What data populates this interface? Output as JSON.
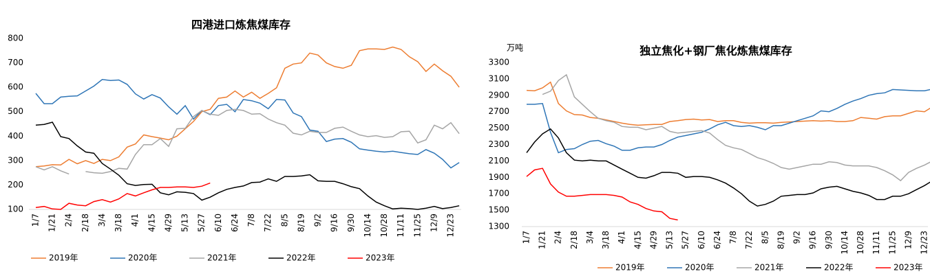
{
  "chart_data": [
    {
      "type": "line",
      "title": "四港进口炼焦煤库存",
      "categories": [
        "1/7",
        null,
        "1/21",
        null,
        "2/4",
        null,
        "2/18",
        null,
        "3/4",
        null,
        "3/18",
        null,
        "4/1",
        null,
        "4/15",
        null,
        "4/29",
        null,
        "5/13",
        null,
        "5/27",
        null,
        "6/10",
        null,
        "6/24",
        null,
        "7/8",
        null,
        "7/22",
        null,
        "8/5",
        null,
        "8/19",
        null,
        "9/2",
        null,
        "9/16",
        null,
        "9/30",
        null,
        "10/14",
        null,
        "10/28",
        null,
        "11/11",
        null,
        "11/25",
        null,
        "12/9",
        null,
        "12/23",
        null
      ],
      "ylim": [
        100,
        800
      ],
      "yticks": [
        100,
        200,
        300,
        400,
        500,
        600,
        700,
        800
      ],
      "legend": "bottom",
      "series": [
        {
          "name": "2019年",
          "color": "#ed7d31",
          "values": [
            275,
            278,
            283,
            282,
            305,
            287,
            300,
            288,
            305,
            300,
            315,
            355,
            368,
            405,
            398,
            392,
            385,
            400,
            430,
            460,
            500,
            510,
            555,
            560,
            585,
            560,
            580,
            555,
            575,
            598,
            678,
            695,
            700,
            740,
            732,
            700,
            685,
            678,
            690,
            750,
            757,
            757,
            755,
            765,
            755,
            725,
            705,
            665,
            695,
            668,
            645,
            600
          ]
        },
        {
          "name": "2020年",
          "color": "#2e75b6",
          "values": [
            575,
            533,
            533,
            560,
            563,
            565,
            585,
            605,
            632,
            628,
            630,
            612,
            573,
            552,
            570,
            556,
            520,
            490,
            525,
            470,
            505,
            488,
            525,
            530,
            500,
            550,
            545,
            535,
            512,
            550,
            548,
            495,
            480,
            425,
            420,
            378,
            388,
            390,
            375,
            348,
            343,
            338,
            335,
            338,
            333,
            328,
            325,
            345,
            330,
            305,
            270,
            292
          ]
        },
        {
          "name": "2021年",
          "color": "#a5a5a5",
          "values": [
            275,
            262,
            275,
            258,
            245,
            null,
            255,
            250,
            248,
            255,
            268,
            265,
            325,
            365,
            365,
            390,
            358,
            430,
            432,
            480,
            505,
            490,
            485,
            505,
            510,
            505,
            490,
            492,
            470,
            455,
            445,
            412,
            405,
            420,
            415,
            415,
            432,
            437,
            420,
            405,
            398,
            402,
            395,
            398,
            418,
            420,
            372,
            385,
            445,
            430,
            455,
            410
          ]
        },
        {
          "name": "2022年",
          "color": "#000000",
          "values": [
            445,
            448,
            457,
            398,
            390,
            360,
            335,
            330,
            288,
            265,
            240,
            205,
            198,
            202,
            203,
            168,
            160,
            172,
            170,
            165,
            138,
            150,
            168,
            182,
            190,
            196,
            210,
            212,
            225,
            215,
            235,
            235,
            237,
            242,
            217,
            215,
            215,
            205,
            193,
            185,
            155,
            130,
            115,
            102,
            105,
            103,
            100,
            105,
            112,
            103,
            108,
            115
          ]
        },
        {
          "name": "2023年",
          "color": "#ff0000",
          "values": [
            108,
            112,
            102,
            100,
            125,
            118,
            115,
            132,
            140,
            130,
            143,
            165,
            155,
            168,
            180,
            190,
            190,
            192,
            192,
            190,
            195,
            208,
            null,
            null,
            null,
            null,
            null,
            null,
            null,
            null,
            null,
            null,
            null,
            null,
            null,
            null,
            null,
            null,
            null,
            null,
            null,
            null,
            null,
            null,
            null,
            null,
            null,
            null,
            null,
            null,
            null,
            null
          ]
        }
      ]
    },
    {
      "type": "line",
      "title": "独立焦化+钢厂焦化炼焦煤库存",
      "y_label": "万吨",
      "categories": [
        "1/7",
        null,
        "1/21",
        null,
        "2/4",
        null,
        "2/18",
        null,
        "3/4",
        null,
        "3/18",
        null,
        "4/1",
        null,
        "4/15",
        null,
        "4/29",
        null,
        "5/13",
        null,
        "5/27",
        null,
        "6/10",
        null,
        "6/24",
        null,
        "7/8",
        null,
        "7/22",
        null,
        "8/5",
        null,
        "8/19",
        null,
        "9/2",
        null,
        "9/16",
        null,
        "9/30",
        null,
        "10/14",
        null,
        "10/28",
        null,
        "11/11",
        null,
        "11/25",
        null,
        "12/9",
        null,
        "12/23",
        null
      ],
      "ylim": [
        1300,
        3300
      ],
      "yticks": [
        1300,
        1500,
        1700,
        1900,
        2100,
        2300,
        2500,
        2700,
        2900,
        3100,
        3300
      ],
      "legend": "bottom",
      "series": [
        {
          "name": "2019年",
          "color": "#ed7d31",
          "values": [
            2960,
            2955,
            2990,
            3060,
            2800,
            2710,
            2665,
            2660,
            2630,
            2620,
            2600,
            2580,
            2560,
            2545,
            2535,
            2540,
            2545,
            2545,
            2580,
            2590,
            2605,
            2610,
            2600,
            2605,
            2580,
            2590,
            2590,
            2570,
            2560,
            2565,
            2565,
            2560,
            2570,
            2575,
            2580,
            2585,
            2590,
            2585,
            2590,
            2580,
            2580,
            2590,
            2630,
            2620,
            2610,
            2640,
            2650,
            2650,
            2680,
            2710,
            2700,
            2760
          ]
        },
        {
          "name": "2020年",
          "color": "#2e75b6",
          "values": [
            2790,
            2790,
            2800,
            2450,
            2200,
            2240,
            2250,
            2300,
            2340,
            2350,
            2310,
            2280,
            2230,
            2230,
            2260,
            2270,
            2270,
            2300,
            2350,
            2390,
            2410,
            2430,
            2450,
            2490,
            2540,
            2570,
            2530,
            2520,
            2530,
            2510,
            2480,
            2530,
            2530,
            2560,
            2590,
            2620,
            2650,
            2710,
            2700,
            2740,
            2790,
            2830,
            2860,
            2900,
            2920,
            2930,
            2970,
            2965,
            2960,
            2955,
            2955,
            2975
          ]
        },
        {
          "name": "2021年",
          "color": "#a5a5a5",
          "values": [
            null,
            null,
            2910,
            2950,
            3080,
            3150,
            2880,
            2790,
            2700,
            2620,
            2590,
            2570,
            2520,
            2510,
            2510,
            2480,
            2500,
            2520,
            2460,
            2440,
            2450,
            2460,
            2470,
            2440,
            2360,
            2290,
            2260,
            2240,
            2190,
            2140,
            2110,
            2070,
            2020,
            2000,
            2020,
            2040,
            2060,
            2060,
            2090,
            2080,
            2050,
            2040,
            2040,
            2040,
            2020,
            1980,
            1930,
            1860,
            1960,
            2010,
            2050,
            2100
          ]
        },
        {
          "name": "2022年",
          "color": "#000000",
          "values": [
            2200,
            2330,
            2430,
            2490,
            2380,
            2200,
            2110,
            2100,
            2110,
            2100,
            2100,
            2050,
            2000,
            1950,
            1900,
            1890,
            1920,
            1960,
            1960,
            1950,
            1900,
            1910,
            1910,
            1900,
            1870,
            1830,
            1770,
            1700,
            1610,
            1550,
            1570,
            1610,
            1670,
            1680,
            1690,
            1690,
            1710,
            1760,
            1780,
            1790,
            1760,
            1730,
            1710,
            1680,
            1630,
            1630,
            1670,
            1670,
            1700,
            1750,
            1800,
            1860
          ]
        },
        {
          "name": "2023年",
          "color": "#ff0000",
          "values": [
            1910,
            1990,
            2010,
            1820,
            1720,
            1670,
            1670,
            1680,
            1690,
            1690,
            1690,
            1680,
            1660,
            1600,
            1570,
            1520,
            1490,
            1480,
            1400,
            1380,
            null,
            null,
            null,
            null,
            null,
            null,
            null,
            null,
            null,
            null,
            null,
            null,
            null,
            null,
            null,
            null,
            null,
            null,
            null,
            null,
            null,
            null,
            null,
            null,
            null,
            null,
            null,
            null,
            null,
            null,
            null,
            null
          ]
        }
      ]
    }
  ]
}
